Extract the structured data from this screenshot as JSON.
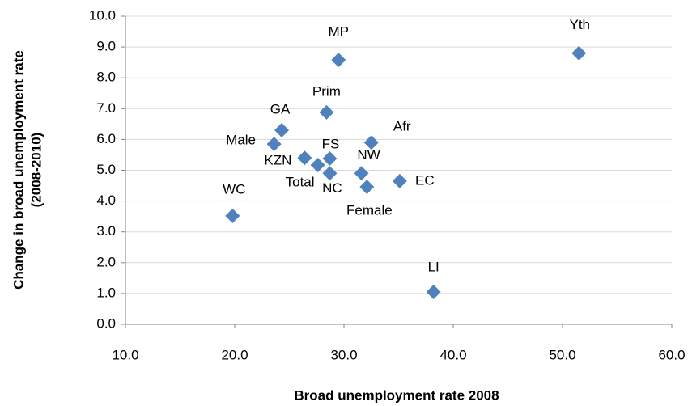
{
  "chart_data": {
    "type": "scatter",
    "xlabel": "Broad unemployment rate 2008",
    "ylabel": [
      "Change in broad unemployment rate",
      "(2008-2010)"
    ],
    "labels": [
      "Yth",
      "MP",
      "Prim",
      "GA",
      "Afr",
      "Male",
      "KZN",
      "FS",
      "Total",
      "NW",
      "NC",
      "EC",
      "Female",
      "WC",
      "LI"
    ],
    "x": [
      51.5,
      29.5,
      28.4,
      24.3,
      32.5,
      23.6,
      26.4,
      28.7,
      27.6,
      31.6,
      28.7,
      35.1,
      32.1,
      19.8,
      38.2
    ],
    "values": [
      8.8,
      8.58,
      6.88,
      6.3,
      5.9,
      5.85,
      5.4,
      5.38,
      5.17,
      4.9,
      4.9,
      4.65,
      4.46,
      3.52,
      1.05
    ],
    "color": "#4f81bd",
    "xlim": [
      10,
      60
    ],
    "xticks": [
      {
        "value": 10,
        "label": "10.0"
      },
      {
        "value": 20,
        "label": "20.0"
      },
      {
        "value": 30,
        "label": "30.0"
      },
      {
        "value": 40,
        "label": "40.0"
      },
      {
        "value": 50,
        "label": "50.0"
      },
      {
        "value": 60,
        "label": "60.0"
      }
    ],
    "ylim": [
      0,
      10
    ],
    "yticks": [
      {
        "value": 0,
        "label": "0.0"
      },
      {
        "value": 1,
        "label": "1.0"
      },
      {
        "value": 2,
        "label": "2.0"
      },
      {
        "value": 3,
        "label": "3.0"
      },
      {
        "value": 4,
        "label": "4.0"
      },
      {
        "value": 5,
        "label": "5.0"
      },
      {
        "value": 6,
        "label": "6.0"
      },
      {
        "value": 7,
        "label": "7.0"
      },
      {
        "value": 8,
        "label": "8.0"
      },
      {
        "value": 9,
        "label": "9.0"
      },
      {
        "value": 10,
        "label": "10.0"
      }
    ],
    "grid": true
  }
}
